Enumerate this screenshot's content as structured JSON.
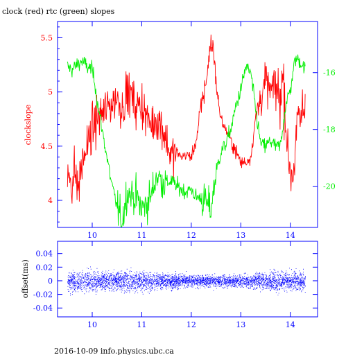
{
  "chart_data": [
    {
      "type": "line",
      "title": "clock (red) rtc (green) slopes",
      "ylabel": "clockslope",
      "x_ticks": [
        "10",
        "11",
        "12",
        "13",
        "14"
      ],
      "x_range": [
        9.3,
        14.55
      ],
      "ylim": [
        3.75,
        5.65
      ],
      "y_ticks": [
        "4",
        "4.5",
        "5",
        "5.5"
      ],
      "y2lim": [
        -21.45,
        -14.2
      ],
      "y2_ticks": [
        "-16",
        "-18",
        "-20"
      ],
      "colors": {
        "red": "#ff0000",
        "green": "#00ee00",
        "axis": "#0000ff"
      },
      "series": [
        {
          "color": "red",
          "axis": "left",
          "x": [
            9.5,
            9.55,
            9.6,
            9.65,
            9.7,
            9.75,
            9.8,
            9.9,
            10.0,
            10.1,
            10.2,
            10.3,
            10.4,
            10.5,
            10.6,
            10.7,
            10.8,
            10.9,
            11.0,
            11.1,
            11.2,
            11.3,
            11.4,
            11.5,
            11.6,
            11.7,
            11.8,
            11.9,
            12.0,
            12.1,
            12.2,
            12.3,
            12.35,
            12.4,
            12.45,
            12.5,
            12.55,
            12.6,
            12.7,
            12.8,
            12.9,
            13.0,
            13.1,
            13.2,
            13.3,
            13.4,
            13.5,
            13.6,
            13.7,
            13.8,
            13.85,
            13.9,
            13.95,
            14.0,
            14.05,
            14.1,
            14.15,
            14.2,
            14.25,
            14.3
          ],
          "values": [
            4.2,
            4.25,
            4.15,
            4.3,
            4.1,
            4.2,
            4.35,
            4.5,
            4.65,
            4.75,
            4.8,
            4.85,
            4.9,
            4.95,
            4.85,
            5.0,
            4.95,
            4.85,
            4.9,
            4.75,
            4.7,
            4.75,
            4.7,
            4.55,
            4.4,
            4.45,
            4.4,
            4.42,
            4.4,
            4.55,
            4.85,
            5.1,
            5.3,
            5.45,
            5.4,
            5.1,
            4.9,
            4.75,
            4.65,
            4.55,
            4.45,
            4.35,
            4.35,
            4.4,
            4.75,
            4.95,
            5.1,
            5.0,
            5.05,
            4.95,
            5.15,
            4.85,
            4.4,
            4.3,
            4.25,
            4.45,
            4.7,
            4.75,
            4.8,
            4.9
          ]
        },
        {
          "color": "green",
          "axis": "right",
          "x": [
            9.5,
            9.6,
            9.7,
            9.8,
            9.9,
            10.0,
            10.05,
            10.1,
            10.2,
            10.3,
            10.4,
            10.5,
            10.6,
            10.7,
            10.8,
            10.9,
            11.0,
            11.1,
            11.2,
            11.3,
            11.4,
            11.5,
            11.6,
            11.7,
            11.8,
            11.9,
            12.0,
            12.1,
            12.2,
            12.3,
            12.4,
            12.5,
            12.6,
            12.7,
            12.8,
            12.9,
            13.0,
            13.1,
            13.2,
            13.3,
            13.4,
            13.5,
            13.6,
            13.7,
            13.8,
            13.9,
            14.0,
            14.1,
            14.2,
            14.3
          ],
          "values": [
            -15.8,
            -15.9,
            -15.7,
            -15.6,
            -15.8,
            -15.9,
            -16.3,
            -17.0,
            -18.0,
            -19.0,
            -20.0,
            -20.7,
            -21.3,
            -20.2,
            -20.3,
            -20.4,
            -20.8,
            -20.6,
            -20.3,
            -19.6,
            -19.8,
            -19.9,
            -19.8,
            -20.0,
            -20.1,
            -20.2,
            -20.1,
            -20.4,
            -20.4,
            -20.6,
            -20.8,
            -19.5,
            -18.8,
            -18.5,
            -18.0,
            -17.2,
            -16.6,
            -15.8,
            -16.0,
            -17.3,
            -18.5,
            -18.6,
            -18.4,
            -18.6,
            -18.6,
            -17.2,
            -16.6,
            -15.5,
            -15.6,
            -15.9
          ]
        }
      ]
    },
    {
      "type": "scatter",
      "ylabel": "offset(ms)",
      "x_ticks": [
        "10",
        "11",
        "12",
        "13",
        "14"
      ],
      "x_range": [
        9.3,
        14.55
      ],
      "ylim": [
        -0.053,
        0.058
      ],
      "y_ticks": [
        "0.04",
        "0.02",
        "0",
        "-0.02",
        "-0.04"
      ],
      "color": "#0000ff",
      "spread": {
        "x": [
          9.5,
          10.0,
          10.5,
          11.0,
          11.5,
          12.0,
          12.5,
          13.0,
          13.5,
          14.0,
          14.3
        ],
        "sd": [
          0.012,
          0.012,
          0.011,
          0.012,
          0.009,
          0.007,
          0.007,
          0.007,
          0.011,
          0.012,
          0.012
        ]
      }
    }
  ],
  "footer": "2016-10-09 info.physics.ubc.ca"
}
